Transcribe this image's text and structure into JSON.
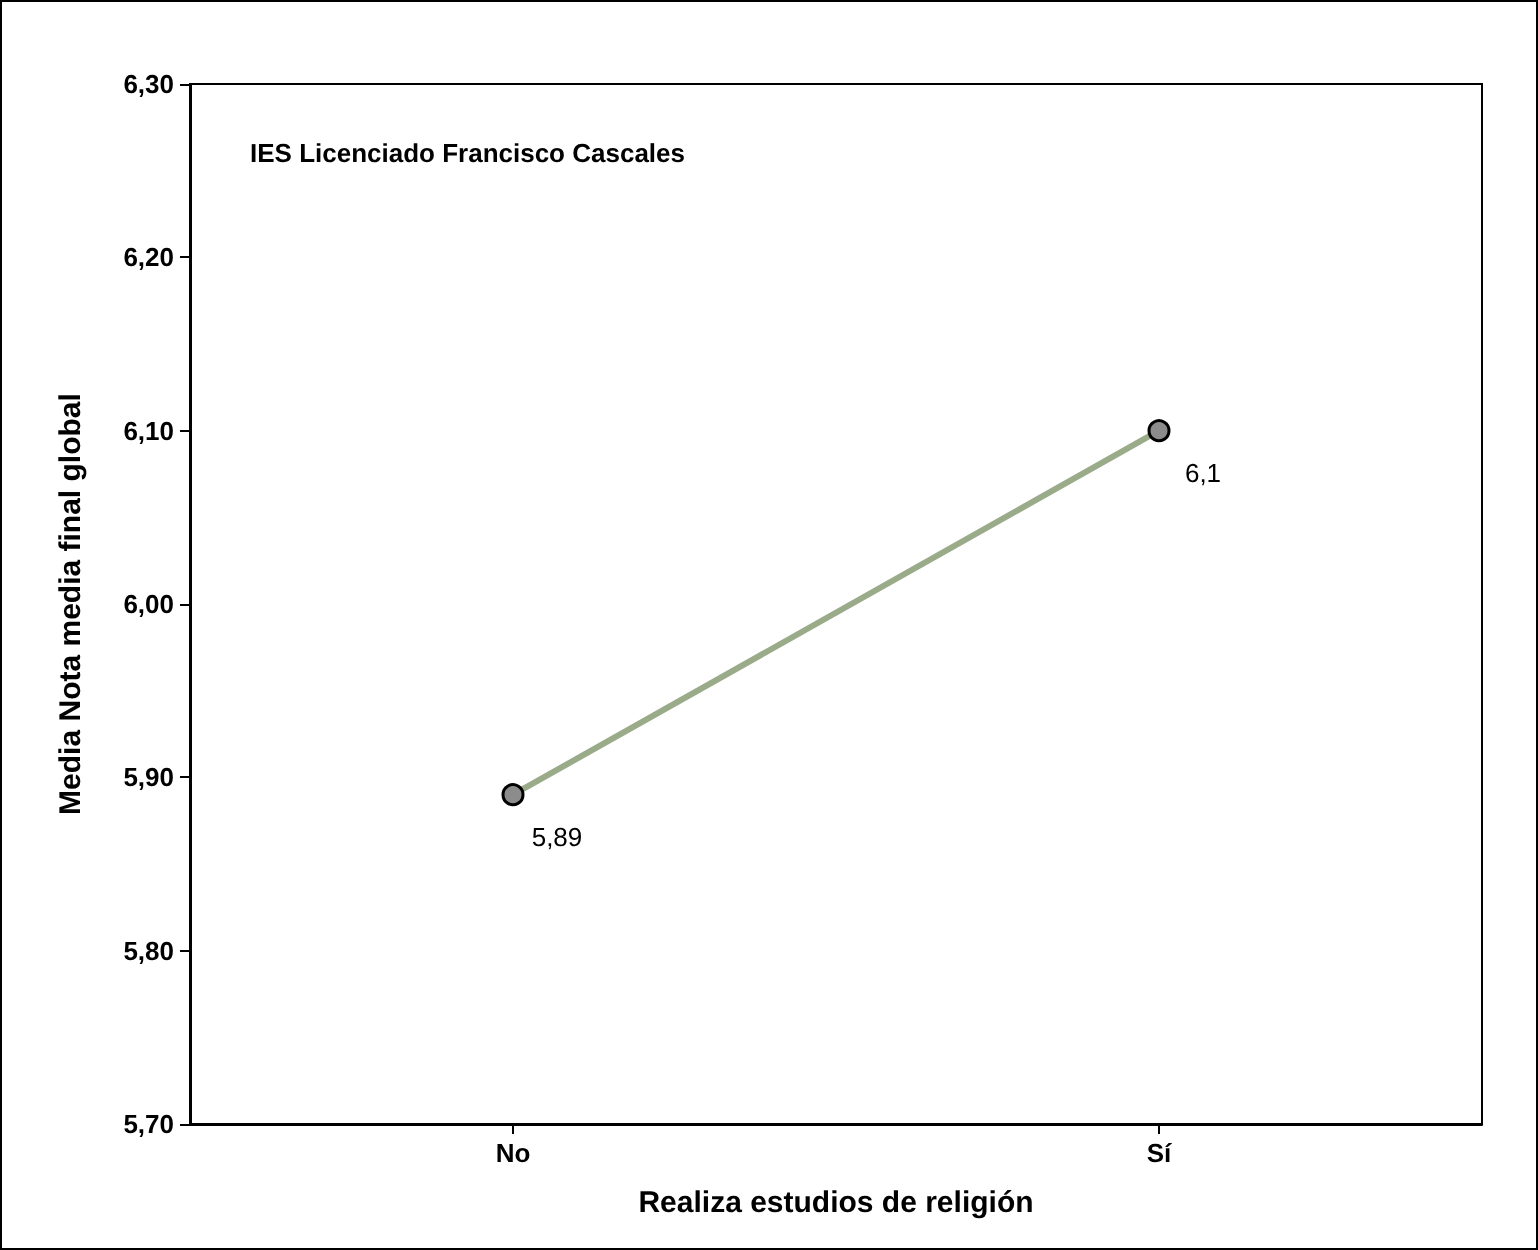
{
  "chart_data": {
    "type": "line",
    "xlabel": "Realiza estudios de religión",
    "ylabel": "Media Nota media final global",
    "annotations": [
      "IES Licenciado Francisco Cascales"
    ],
    "categories": [
      "No",
      "Sí"
    ],
    "series": [
      {
        "color": "#9aab8a",
        "values": [
          5.89,
          6.1
        ],
        "value_labels": [
          "5,89",
          "6,1"
        ]
      }
    ],
    "ylim": [
      5.7,
      6.3
    ],
    "yticks": [
      {
        "value": 5.7,
        "label": "5,70"
      },
      {
        "value": 5.8,
        "label": "5,80"
      },
      {
        "value": 5.9,
        "label": "5,90"
      },
      {
        "value": 6.0,
        "label": "6,00"
      },
      {
        "value": 6.1,
        "label": "6,10"
      },
      {
        "value": 6.2,
        "label": "6,20"
      },
      {
        "value": 6.3,
        "label": "6,30"
      }
    ],
    "grid": false,
    "marker": "circle",
    "line_style": "solid"
  }
}
